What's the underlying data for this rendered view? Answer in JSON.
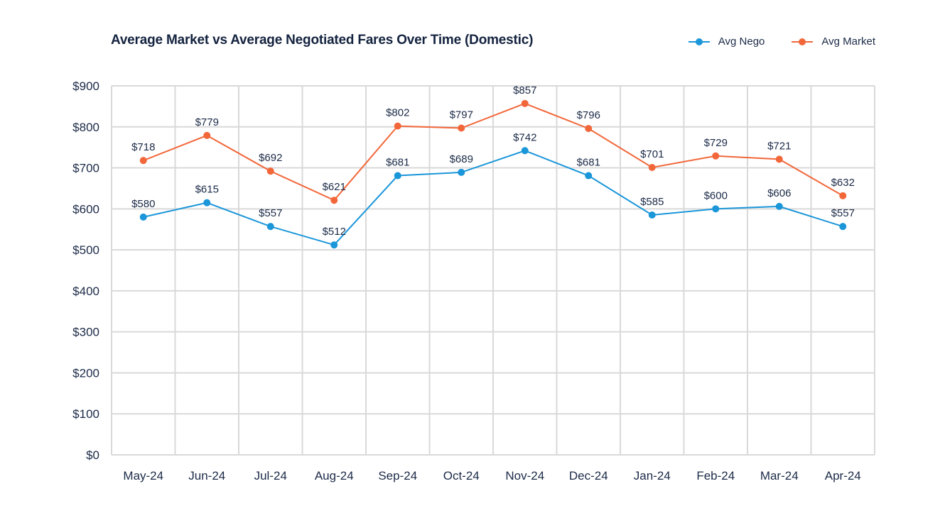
{
  "chart_data": {
    "type": "line",
    "title": "Average Market vs Average Negotiated Fares Over Time (Domestic)",
    "xlabel": "",
    "ylabel": "",
    "categories": [
      "May-24",
      "Jun-24",
      "Jul-24",
      "Aug-24",
      "Sep-24",
      "Oct-24",
      "Nov-24",
      "Dec-24",
      "Jan-24",
      "Feb-24",
      "Mar-24",
      "Apr-24"
    ],
    "series": [
      {
        "name": "Avg Nego",
        "color": "#1a96d9",
        "values": [
          580,
          615,
          557,
          512,
          681,
          689,
          742,
          681,
          585,
          600,
          606,
          557
        ],
        "labels": [
          "$580",
          "$615",
          "$557",
          "$512",
          "$681",
          "$689",
          "$742",
          "$681",
          "$585",
          "$600",
          "$606",
          "$557"
        ]
      },
      {
        "name": "Avg Market",
        "color": "#f2673a",
        "values": [
          718,
          779,
          692,
          621,
          802,
          797,
          857,
          796,
          701,
          729,
          721,
          632
        ],
        "labels": [
          "$718",
          "$779",
          "$692",
          "$621",
          "$802",
          "$797",
          "$857",
          "$796",
          "$701",
          "$729",
          "$721",
          "$632"
        ]
      }
    ],
    "ylim": [
      0,
      900
    ],
    "yticks": [
      0,
      100,
      200,
      300,
      400,
      500,
      600,
      700,
      800,
      900
    ],
    "ytick_labels": [
      "$0",
      "$100",
      "$200",
      "$300",
      "$400",
      "$500",
      "$600",
      "$700",
      "$800",
      "$900"
    ],
    "grid": true,
    "legend_position": "top-right"
  }
}
